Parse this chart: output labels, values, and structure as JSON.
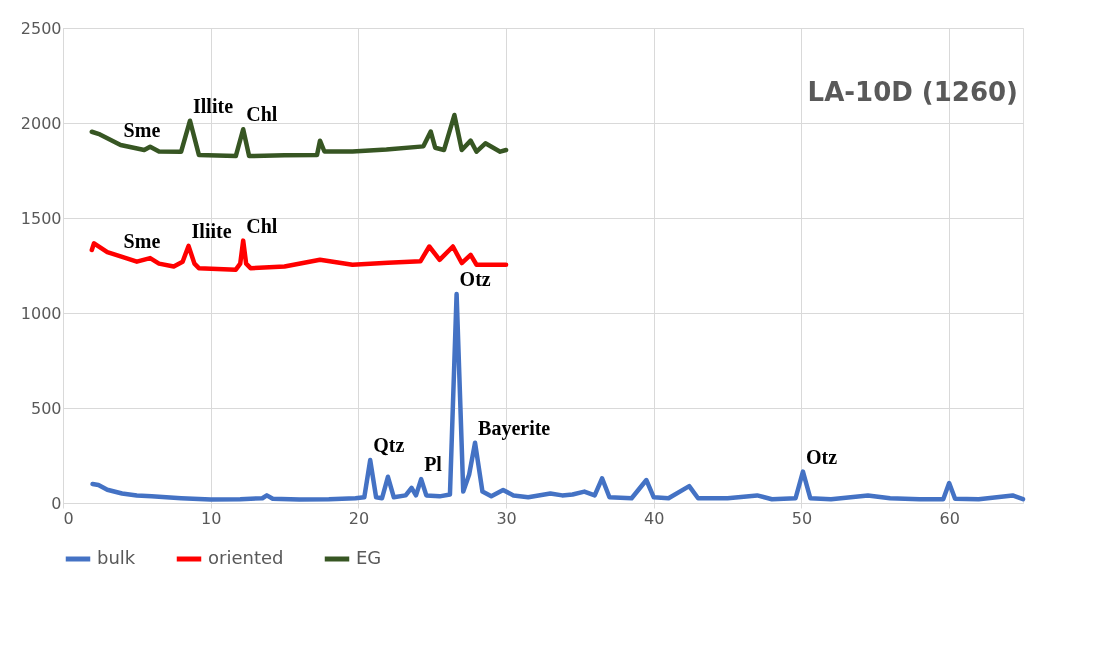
{
  "chart_data": {
    "type": "line",
    "title": "LA-10D (1260)",
    "xlim": [
      0,
      65
    ],
    "xticks": [
      0,
      10,
      20,
      30,
      40,
      50,
      60
    ],
    "ylim": [
      0,
      2500
    ],
    "yticks": [
      0,
      500,
      1000,
      1500,
      2000,
      2500
    ],
    "grid": true,
    "legend": "bottom",
    "marker": "none",
    "line_style": "solid",
    "series": [
      {
        "name": "bulk",
        "color": "#4472c4",
        "x": [
          2,
          2.4,
          3,
          4,
          5,
          6,
          8,
          10,
          12,
          13.5,
          13.8,
          14.2,
          16,
          18,
          19.8,
          20.4,
          20.8,
          21.2,
          21.6,
          22.0,
          22.4,
          23.2,
          23.6,
          23.9,
          24.25,
          24.6,
          25.5,
          26.2,
          26.65,
          27.1,
          27.5,
          27.9,
          28.4,
          29,
          29.8,
          30.5,
          31.5,
          33,
          33.8,
          34.5,
          35.3,
          36,
          36.5,
          37,
          38.5,
          39.5,
          40,
          41,
          42.4,
          43,
          45,
          47,
          48,
          49.6,
          50.1,
          50.6,
          52,
          54.5,
          56,
          58,
          59.6,
          60.0,
          60.4,
          62,
          64.3,
          65
        ],
        "values": [
          100,
          95,
          70,
          50,
          40,
          35,
          25,
          18,
          20,
          25,
          40,
          22,
          18,
          20,
          25,
          30,
          226,
          30,
          25,
          138,
          30,
          40,
          80,
          40,
          126,
          40,
          35,
          45,
          1100,
          60,
          150,
          317,
          60,
          35,
          68,
          40,
          30,
          50,
          40,
          45,
          60,
          40,
          130,
          30,
          25,
          121,
          30,
          25,
          89,
          25,
          25,
          40,
          20,
          25,
          165,
          25,
          20,
          40,
          25,
          20,
          20,
          105,
          22,
          20,
          40,
          20
        ]
      },
      {
        "name": "oriented",
        "color": "#ff0000",
        "x": [
          1.95,
          2.1,
          3,
          3.9,
          5,
          5.9,
          6.5,
          7.5,
          8.1,
          8.5,
          8.9,
          9.2,
          11.7,
          12.0,
          12.2,
          12.4,
          12.7,
          15,
          17.4,
          19.6,
          22,
          24.2,
          24.8,
          25.5,
          26.4,
          27.0,
          27.6,
          28.0,
          30.0
        ],
        "values": [
          1332,
          1367,
          1320,
          1298,
          1270,
          1289,
          1260,
          1245,
          1270,
          1353,
          1260,
          1236,
          1228,
          1260,
          1381,
          1260,
          1236,
          1245,
          1280,
          1254,
          1265,
          1272,
          1350,
          1280,
          1350,
          1263,
          1306,
          1254,
          1254
        ]
      },
      {
        "name": "EG",
        "color": "#375623",
        "x": [
          1.95,
          2.5,
          3.9,
          5.5,
          5.9,
          6.5,
          8.0,
          8.6,
          9.2,
          11.7,
          12.2,
          12.6,
          15,
          17.2,
          17.4,
          17.7,
          19.6,
          21.9,
          24.4,
          24.9,
          25.2,
          25.8,
          26.5,
          27.0,
          27.6,
          28.0,
          28.6,
          29.6,
          30.0
        ],
        "values": [
          1954,
          1940,
          1884,
          1858,
          1875,
          1850,
          1849,
          2012,
          1832,
          1826,
          1967,
          1826,
          1830,
          1832,
          1907,
          1850,
          1850,
          1860,
          1877,
          1955,
          1870,
          1858,
          2042,
          1858,
          1907,
          1849,
          1893,
          1849,
          1858
        ]
      }
    ],
    "annotations": [
      {
        "text": "Sme",
        "x": 3.9,
        "y": 1884
      },
      {
        "text": "Illite",
        "x": 8.6,
        "y": 2012
      },
      {
        "text": "Chl",
        "x": 12.2,
        "y": 1967
      },
      {
        "text": "Sme",
        "x": 3.9,
        "y": 1298
      },
      {
        "text": "Iliite",
        "x": 8.5,
        "y": 1353
      },
      {
        "text": "Chl",
        "x": 12.2,
        "y": 1381
      },
      {
        "text": "Qtz",
        "x": 20.8,
        "y": 226
      },
      {
        "text": "Pl",
        "x": 24.25,
        "y": 126
      },
      {
        "text": "Otz",
        "x": 26.65,
        "y": 1100
      },
      {
        "text": "Bayerite",
        "x": 27.9,
        "y": 317
      },
      {
        "text": "Otz",
        "x": 50.1,
        "y": 165
      }
    ]
  }
}
